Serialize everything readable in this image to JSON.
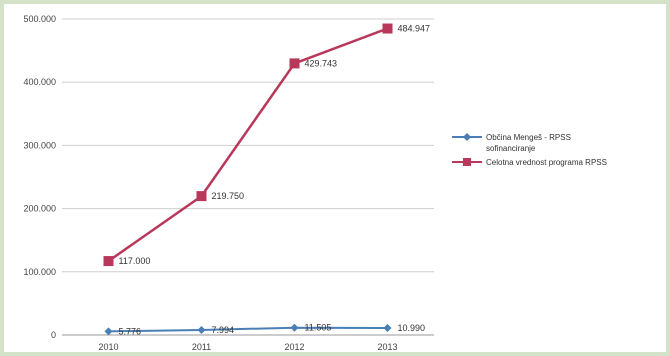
{
  "chart_data": {
    "type": "line",
    "categories": [
      "2010",
      "2011",
      "2012",
      "2013"
    ],
    "series": [
      {
        "name": "Občina Mengeš - RPSS sofinanciranje",
        "legend_lines": [
          "Občina Mengeš - RPSS",
          "sofinanciranje"
        ],
        "values": [
          5776,
          7994,
          11505,
          10990
        ],
        "labels": [
          "5.776",
          "7.994",
          "11.505",
          "10.990"
        ],
        "color": "#4a7fb5",
        "marker": "diamond"
      },
      {
        "name": "Celotna vrednost programa RPSS",
        "legend_lines": [
          "Celotna vrednost programa RPSS"
        ],
        "values": [
          117000,
          219750,
          429743,
          484947
        ],
        "labels": [
          "117.000",
          "219.750",
          "429.743",
          "484.947"
        ],
        "color": "#b9375a",
        "marker": "square"
      }
    ],
    "y_ticks": [
      0,
      100000,
      200000,
      300000,
      400000,
      500000
    ],
    "y_tick_labels": [
      "0",
      "100.000",
      "200.000",
      "300.000",
      "400.000",
      "500.000"
    ],
    "ylim": [
      0,
      500000
    ],
    "grid": true,
    "legend_position": "right",
    "title": "",
    "xlabel": "",
    "ylabel": ""
  }
}
